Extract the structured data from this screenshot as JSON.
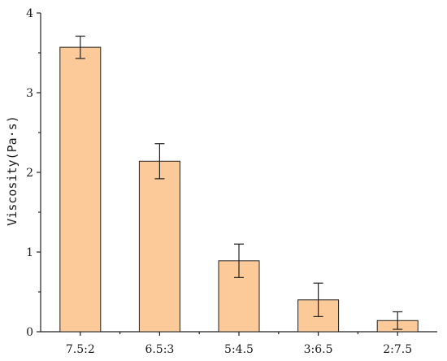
{
  "chart_data": {
    "type": "bar",
    "title": "",
    "xlabel": "",
    "ylabel": "Viscosity(Pa·s)",
    "categories": [
      "7.5:2",
      "6.5:3",
      "5:4.5",
      "3:6.5",
      "2:7.5"
    ],
    "values": [
      3.57,
      2.14,
      0.89,
      0.4,
      0.14
    ],
    "errors": [
      0.14,
      0.22,
      0.21,
      0.21,
      0.11
    ],
    "ylim": [
      0,
      4
    ],
    "yticks": [
      "0",
      "1",
      "2",
      "3",
      "4"
    ],
    "grid": false,
    "bar_color": "#fcc999",
    "edge_color": "#222222"
  }
}
